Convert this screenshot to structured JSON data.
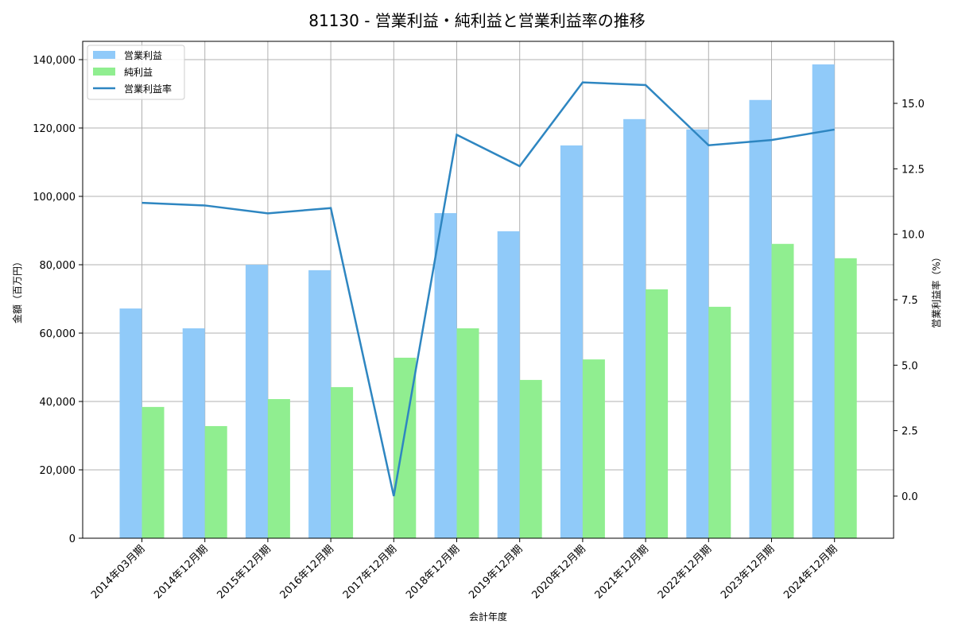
{
  "chart_data": {
    "type": "bar+line",
    "title": "81130 - 営業利益・純利益と営業利益率の推移",
    "xlabel": "会計年度",
    "ylabel": "金額（百万円）",
    "y2label": "営業利益率（%）",
    "categories": [
      "2014年03月期",
      "2014年12月期",
      "2015年12月期",
      "2016年12月期",
      "2017年12月期",
      "2018年12月期",
      "2019年12月期",
      "2020年12月期",
      "2021年12月期",
      "2022年12月期",
      "2023年12月期",
      "2024年12月期"
    ],
    "series": [
      {
        "name": "営業利益",
        "type": "bar",
        "axis": "left",
        "color": "#90caf9",
        "values": [
          67200,
          61400,
          80000,
          78400,
          0,
          95100,
          89800,
          114900,
          122600,
          119600,
          128200,
          138600
        ]
      },
      {
        "name": "純利益",
        "type": "bar",
        "axis": "left",
        "color": "#90ee90",
        "values": [
          38400,
          32800,
          40700,
          44200,
          52800,
          61400,
          46300,
          52300,
          72800,
          67700,
          86100,
          81900
        ]
      },
      {
        "name": "営業利益率",
        "type": "line",
        "axis": "right",
        "color": "#2e86c1",
        "values": [
          11.2,
          11.1,
          10.8,
          11.0,
          0.0,
          13.8,
          12.6,
          15.8,
          15.7,
          13.4,
          13.6,
          14.0
        ]
      }
    ],
    "ylim": [
      0,
      145000
    ],
    "y2lim": [
      -1.35,
      17.0
    ],
    "yticks": [
      0,
      20000,
      40000,
      60000,
      80000,
      100000,
      120000,
      140000
    ],
    "ytick_labels": [
      "0",
      "20,000",
      "40,000",
      "60,000",
      "80,000",
      "100,000",
      "120,000",
      "140,000"
    ],
    "y2ticks": [
      0.0,
      2.5,
      5.0,
      7.5,
      10.0,
      12.5,
      15.0
    ],
    "y2tick_labels": [
      "0.0",
      "2.5",
      "5.0",
      "7.5",
      "10.0",
      "12.5",
      "15.0"
    ],
    "grid": true,
    "legend_position": "upper left"
  },
  "legend": {
    "items": [
      {
        "label": "営業利益",
        "kind": "patch",
        "color": "#90caf9"
      },
      {
        "label": "純利益",
        "kind": "patch",
        "color": "#90ee90"
      },
      {
        "label": "営業利益率",
        "kind": "line",
        "color": "#2e86c1"
      }
    ]
  }
}
